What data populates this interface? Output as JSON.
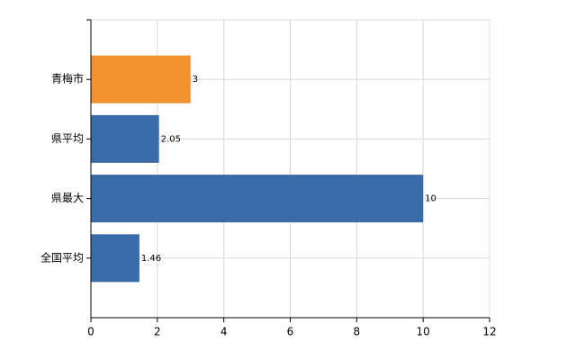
{
  "chart_data": {
    "type": "bar",
    "orientation": "horizontal",
    "categories": [
      "青梅市",
      "県平均",
      "県最大",
      "全国平均"
    ],
    "values": [
      3,
      2.05,
      10,
      1.46
    ],
    "colors": [
      "#f0922e",
      "#3a6aa7",
      "#3a6aa7",
      "#3a6aa7"
    ],
    "xlim": [
      0,
      12
    ],
    "xticks": [
      0,
      2,
      4,
      6,
      8,
      10,
      12
    ],
    "grid": true
  }
}
